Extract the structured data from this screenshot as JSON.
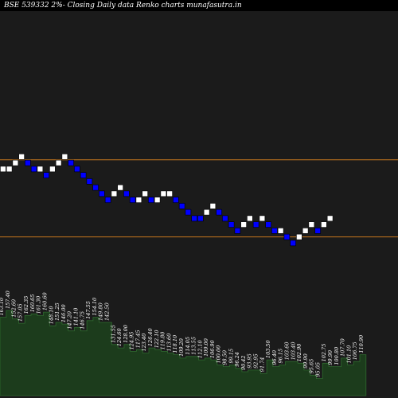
{
  "chart_data": {
    "type": "renko",
    "title": "BSE 539332  2%-  Closing Daily data  Renko  charts munafasutra.in",
    "colors": {
      "background": "#000000",
      "up_brick": "#ffffff",
      "down_brick": "#0000ff",
      "reference_line": "#c8781e",
      "volume_area": "#1c3c1c",
      "volume_stroke": "#2e6a2e",
      "plot_frame": "#1b1b1b"
    },
    "reference_lines": [
      {
        "name": "upper",
        "level": 31
      },
      {
        "name": "lower",
        "level": 19
      }
    ],
    "brick_levels": [
      30,
      30,
      31,
      32,
      31,
      30,
      30,
      29,
      30,
      31,
      32,
      31,
      30,
      29,
      28,
      27,
      26,
      25,
      26,
      27,
      26,
      25,
      25,
      26,
      25,
      25,
      26,
      26,
      25,
      24,
      23,
      22,
      22,
      23,
      24,
      23,
      22,
      21,
      20,
      21,
      22,
      21,
      22,
      21,
      20,
      20,
      19,
      18,
      19,
      20,
      21,
      20,
      21,
      22
    ],
    "brick_directions": [
      "up",
      "up",
      "up",
      "up",
      "down",
      "down",
      "up",
      "down",
      "up",
      "up",
      "up",
      "down",
      "down",
      "down",
      "down",
      "down",
      "down",
      "down",
      "up",
      "up",
      "down",
      "down",
      "up",
      "up",
      "down",
      "up",
      "up",
      "up",
      "down",
      "down",
      "down",
      "down",
      "down",
      "up",
      "up",
      "down",
      "down",
      "down",
      "down",
      "up",
      "up",
      "down",
      "up",
      "down",
      "down",
      "up",
      "down",
      "down",
      "up",
      "up",
      "up",
      "down",
      "up",
      "up"
    ],
    "volume_labels": [
      "163.10",
      "157.40",
      "152.60",
      "157.05",
      "162.35",
      "160.65",
      "161.30",
      "160.60",
      "148.10",
      "151.25",
      "146.00",
      "147.20",
      "141.10",
      "146.75",
      "147.55",
      "154.10",
      "149.80",
      "142.50",
      "131.55",
      "124.60",
      "128.00",
      "124.95",
      "117.45",
      "123.40",
      "126.40",
      "122.10",
      "119.80",
      "113.60",
      "118.10",
      "109.20",
      "114.05",
      "113.55",
      "112.10",
      "109.00",
      "106.90",
      "100.00",
      "98.50",
      "99.15",
      "96.24",
      "90.42",
      "93.95",
      "92.95",
      "91.74",
      "103.50",
      "96.40",
      "96.15",
      "103.60",
      "103.40",
      "102.90",
      "99.90",
      "95.65",
      "95.05",
      "102.75",
      "99.90",
      "100.80",
      "107.70",
      "101.10",
      "106.75",
      "110.90"
    ],
    "volume_values": [
      92,
      100,
      90,
      85,
      94,
      96,
      94,
      98,
      82,
      86,
      84,
      76,
      80,
      76,
      88,
      92,
      86,
      86,
      60,
      56,
      60,
      52,
      54,
      50,
      56,
      54,
      52,
      50,
      48,
      44,
      46,
      46,
      42,
      44,
      42,
      36,
      34,
      36,
      32,
      28,
      30,
      30,
      26,
      42,
      34,
      36,
      40,
      40,
      38,
      30,
      24,
      20,
      38,
      34,
      34,
      44,
      36,
      40,
      48
    ]
  }
}
